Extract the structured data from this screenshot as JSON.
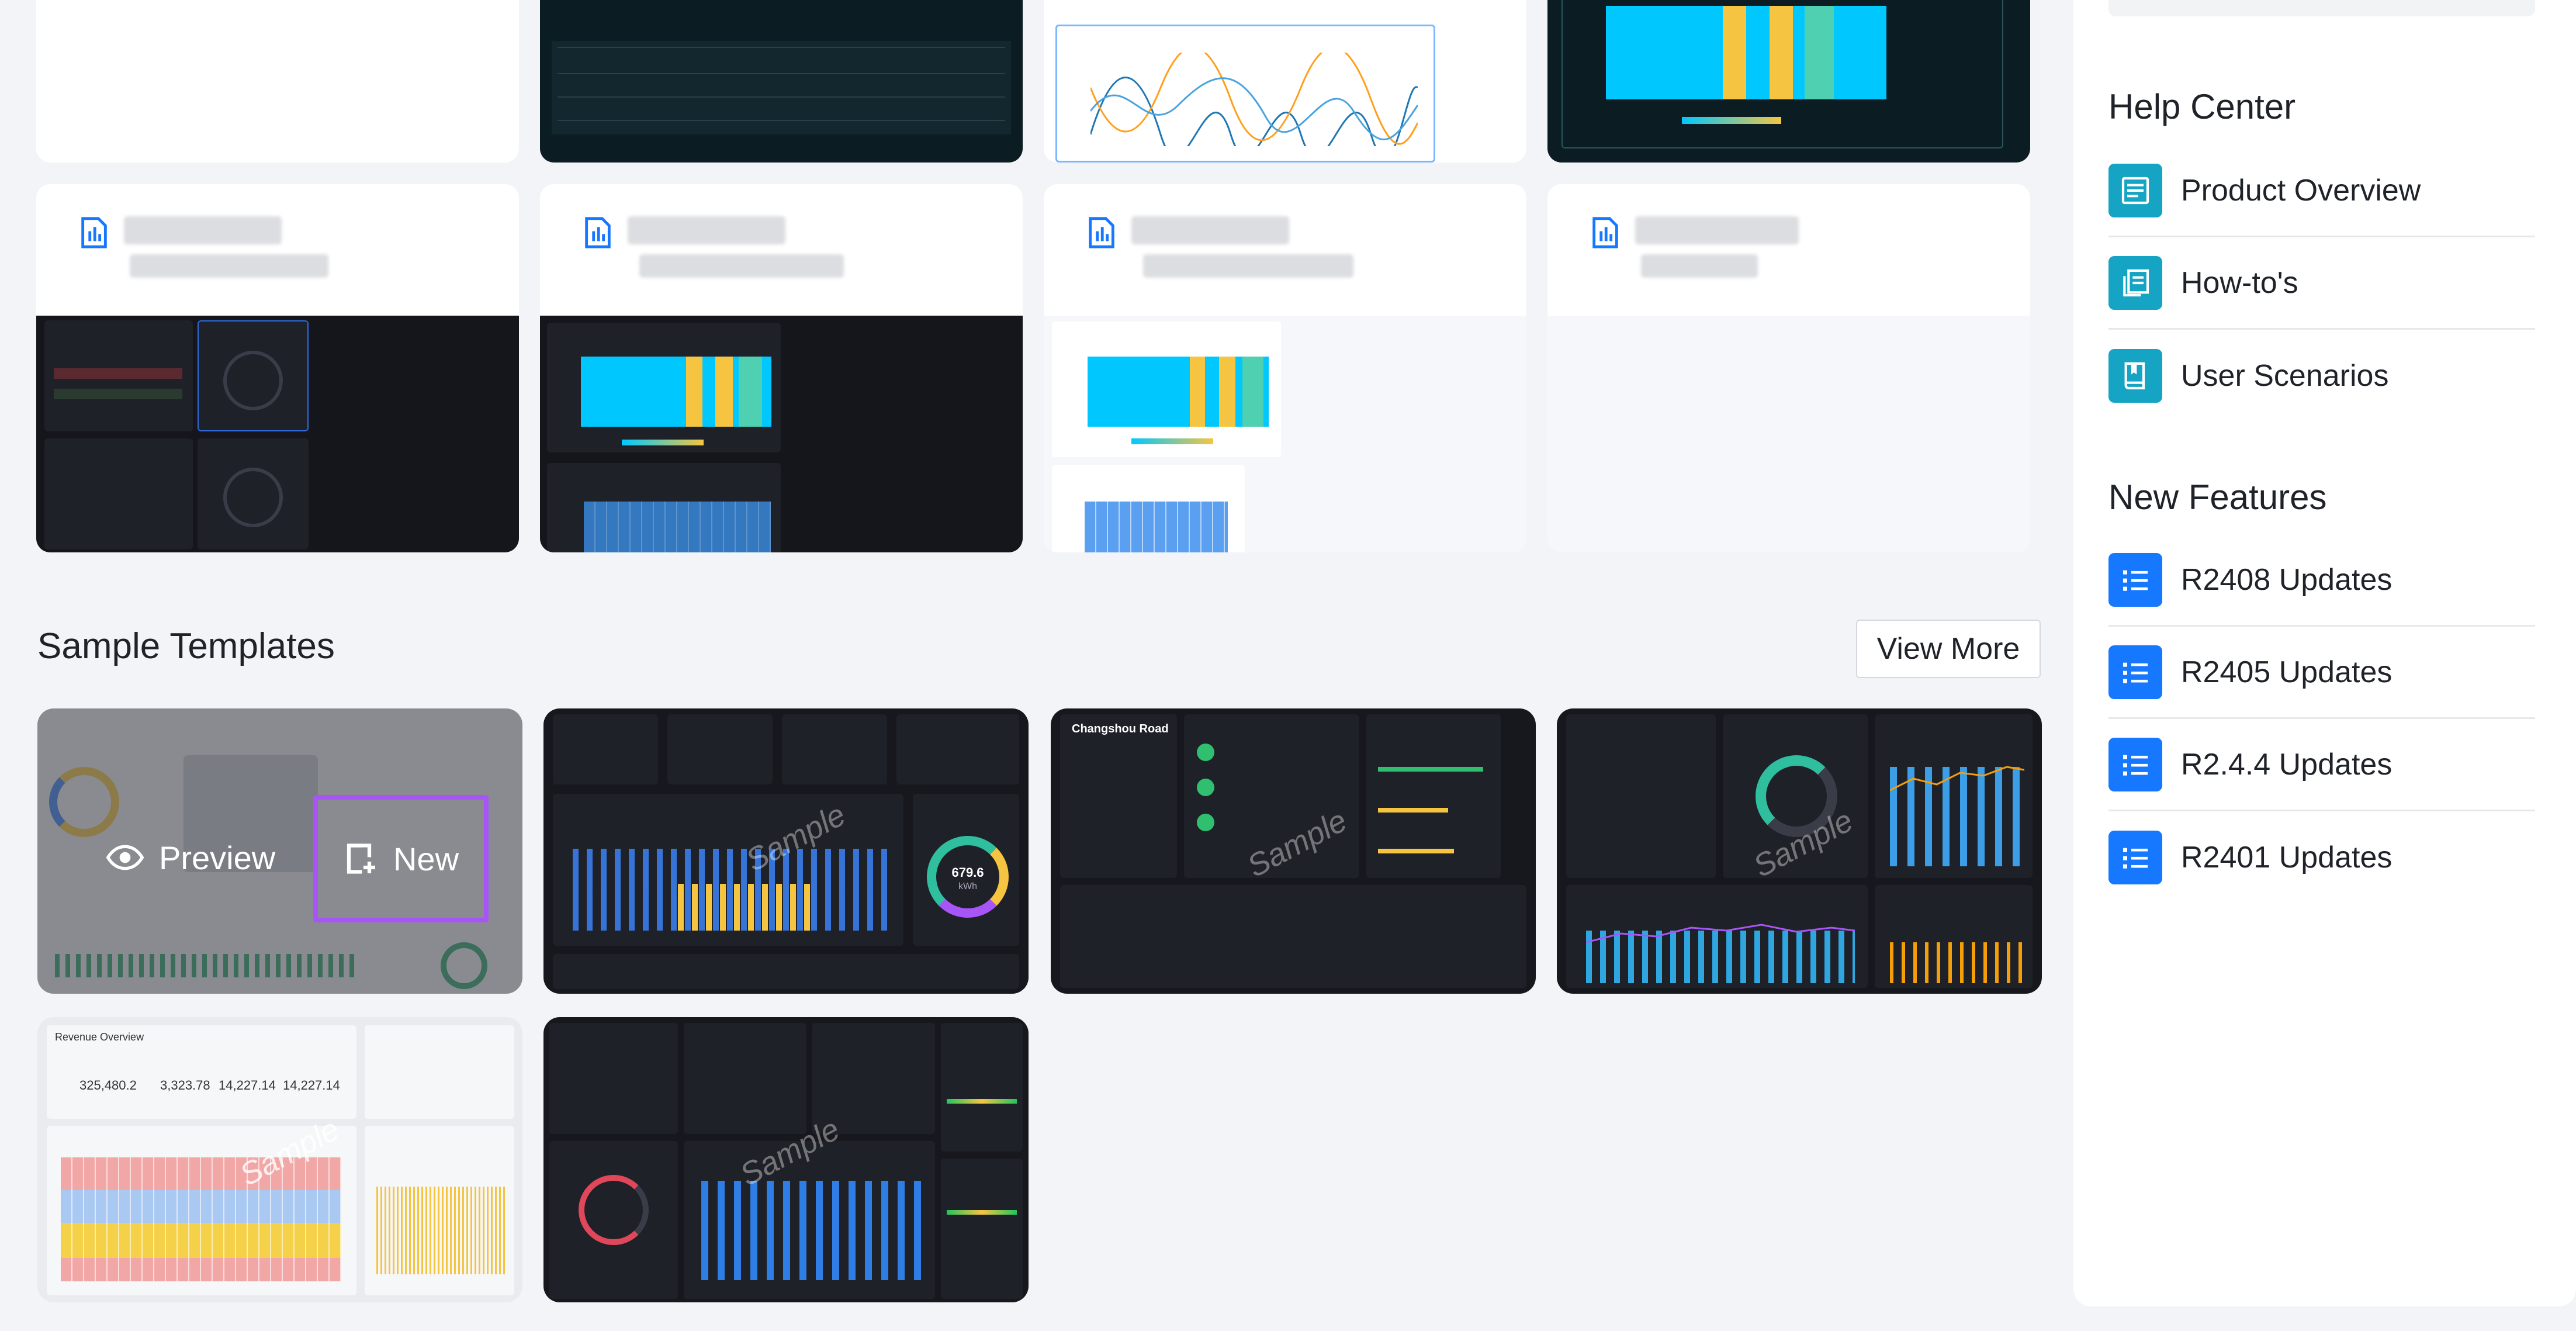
{
  "sidebar": {
    "help_center": {
      "title": "Help Center",
      "items": [
        {
          "label": "Product Overview",
          "icon": "document-lines-icon"
        },
        {
          "label": "How-to's",
          "icon": "copy-pages-icon"
        },
        {
          "label": "User Scenarios",
          "icon": "book-icon"
        }
      ]
    },
    "new_features": {
      "title": "New Features",
      "items": [
        {
          "label": "R2408 Updates",
          "icon": "list-icon"
        },
        {
          "label": "R2405 Updates",
          "icon": "list-icon"
        },
        {
          "label": "R2.4.4 Updates",
          "icon": "list-icon"
        },
        {
          "label": "R2401 Updates",
          "icon": "list-icon"
        }
      ]
    }
  },
  "sample_templates": {
    "title": "Sample Templates",
    "view_more": "View More",
    "watermark": "Sample",
    "hover": {
      "preview": "Preview",
      "new": "New"
    },
    "template2": {
      "gauge_value": "679.6",
      "gauge_unit": "kWh"
    },
    "template3": {
      "heading": "Changshou Road"
    },
    "template5": {
      "heading": "Revenue Overview",
      "values": [
        "325,480.2",
        "3,323.78",
        "14,227.14",
        "14,227.14"
      ]
    }
  },
  "colors": {
    "accent": "#1677ff",
    "teal": "#16a4c4",
    "highlight": "#a855f7",
    "heat_cyan": "#00c8ff",
    "heat_yellow": "#f5c542"
  }
}
